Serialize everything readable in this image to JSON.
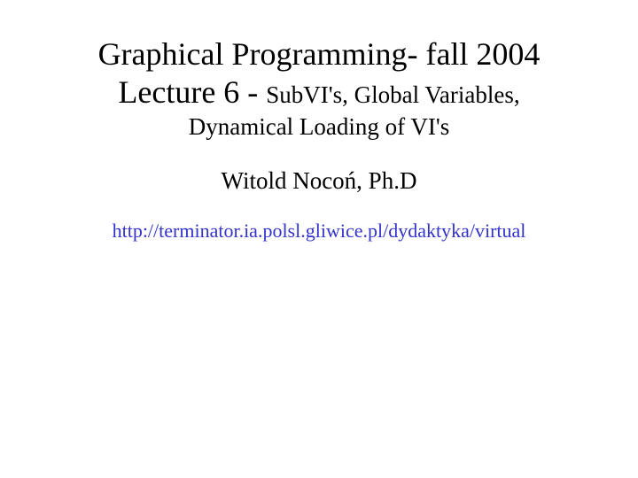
{
  "slide": {
    "title_line1": "Graphical Programming- fall 2004",
    "title_line2_prefix": "Lecture 6 - ",
    "subtitle_part1": "SubVI's, Global Variables,",
    "subtitle_part2": "Dynamical Loading of VI's",
    "author": "Witold Nocoń, Ph.D",
    "link_text": "http://terminator.ia.polsl.gliwice.pl/dydaktyka/virtual",
    "colors": {
      "background": "#ffffff",
      "text": "#000000",
      "link": "#3333cc"
    },
    "fonts": {
      "family": "Times New Roman",
      "title_size": 36,
      "subtitle_size": 27,
      "author_size": 27,
      "link_size": 22
    }
  }
}
